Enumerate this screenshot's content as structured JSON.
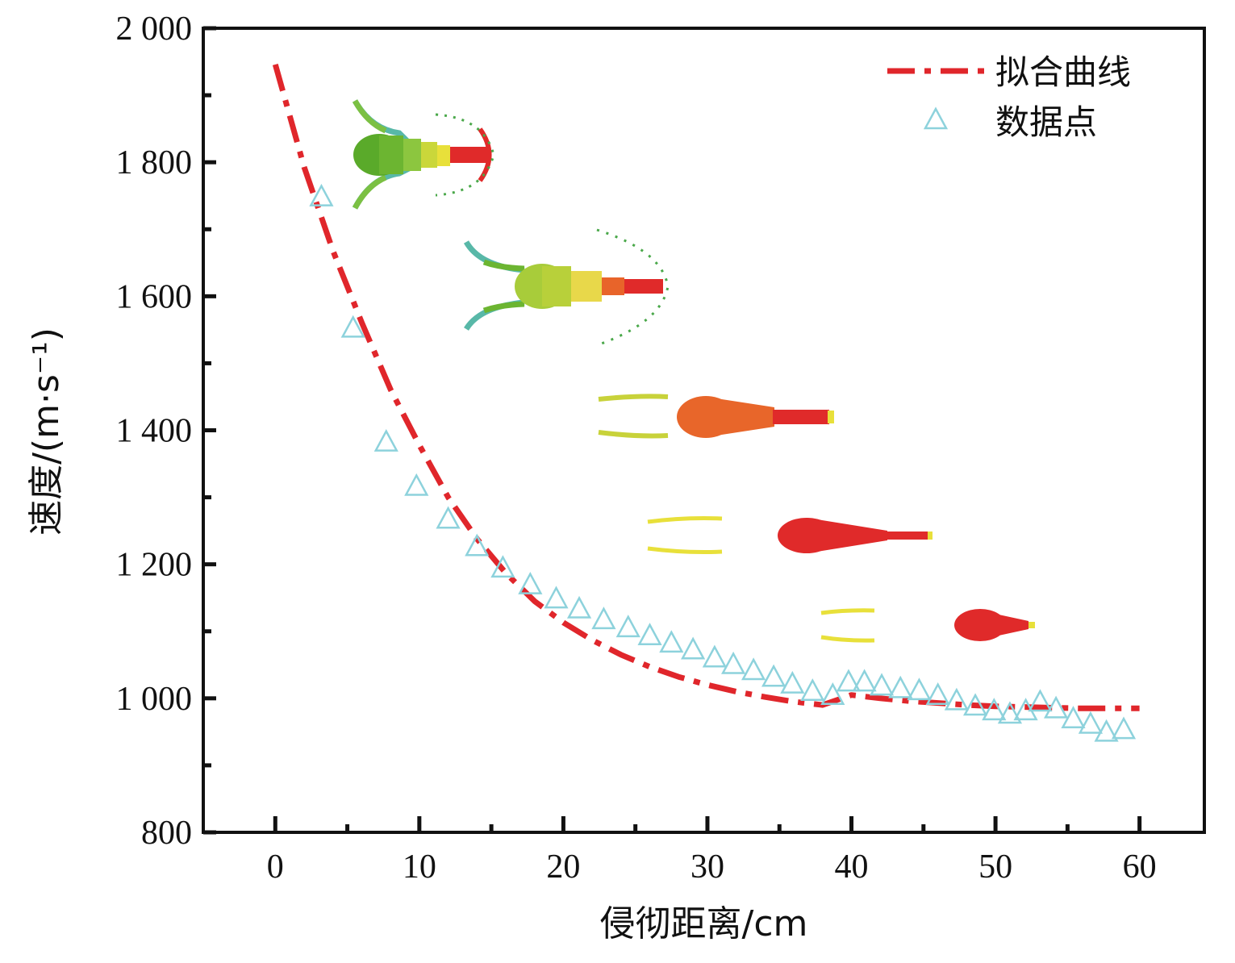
{
  "chart_data": {
    "type": "scatter",
    "xlabel": "侵彻距离/cm",
    "ylabel": "速度/(m·s⁻¹)",
    "xlim": [
      -5,
      64.5
    ],
    "ylim": [
      800,
      2000
    ],
    "xticks": [
      0,
      10,
      20,
      30,
      40,
      50,
      60
    ],
    "xtick_labels": [
      "0",
      "10",
      "20",
      "30",
      "40",
      "50",
      "60"
    ],
    "yticks": [
      800,
      1000,
      1200,
      1400,
      1600,
      1800,
      2000
    ],
    "ytick_labels": [
      "800",
      "1 000",
      "1 200",
      "1 400",
      "1 600",
      "1 800",
      "2 000"
    ],
    "grid": false,
    "legend_position": "top-right",
    "series": [
      {
        "name": "拟合曲线",
        "kind": "line",
        "style": "dash-dot",
        "color": "#e0262b",
        "x": [
          0,
          2,
          4,
          6,
          8,
          10,
          12,
          14,
          16,
          18,
          20,
          22,
          24,
          26,
          28,
          30,
          32,
          34,
          36,
          38,
          40,
          42,
          44,
          46,
          48,
          50,
          52,
          54,
          56,
          58,
          60
        ],
        "y": [
          1946,
          1793,
          1668,
          1561,
          1461,
          1378,
          1300,
          1238,
          1187,
          1145,
          1113,
          1087,
          1065,
          1047,
          1032,
          1020,
          1010,
          1002,
          995,
          990,
          1005,
          1000,
          996,
          993,
          990,
          988,
          987,
          986,
          985,
          985,
          985
        ]
      },
      {
        "name": "数据点",
        "kind": "scatter",
        "marker": "triangle-open",
        "color": "#8dd2dc",
        "x": [
          3.2,
          5.4,
          7.7,
          9.8,
          12.0,
          14.0,
          15.8,
          17.7,
          19.5,
          21.1,
          22.8,
          24.5,
          26.0,
          27.5,
          29.0,
          30.5,
          31.8,
          33.2,
          34.6,
          35.9,
          37.3,
          38.7,
          39.8,
          40.9,
          42.1,
          43.4,
          44.7,
          46.0,
          47.3,
          48.6,
          49.9,
          51.0,
          52.1,
          53.1,
          54.2,
          55.4,
          56.6,
          57.7,
          58.9
        ],
        "y": [
          1749,
          1553,
          1383,
          1317,
          1268,
          1227,
          1195,
          1170,
          1149,
          1134,
          1118,
          1106,
          1094,
          1083,
          1073,
          1061,
          1051,
          1042,
          1032,
          1022,
          1011,
          1005,
          1025,
          1025,
          1019,
          1015,
          1012,
          1005,
          997,
          989,
          982,
          977,
          982,
          995,
          985,
          970,
          962,
          950,
          954
        ]
      }
    ]
  },
  "inset_images": [
    {
      "label": "",
      "stage_colors": [
        "#5aaa2a",
        "#8cc63f",
        "#e8e03a",
        "#e02a2a"
      ]
    },
    {
      "label": "",
      "stage_colors": [
        "#9acd32",
        "#e8d84a",
        "#e8642a",
        "#e02a2a"
      ]
    },
    {
      "label": "",
      "stage_colors": [
        "#e8662a",
        "#e02a2a",
        "#c8d23a"
      ]
    },
    {
      "label": "",
      "stage_colors": [
        "#e02a2a",
        "#e8e03a"
      ]
    },
    {
      "label": "",
      "stage_colors": [
        "#e02a2a",
        "#e8e03a"
      ]
    }
  ]
}
